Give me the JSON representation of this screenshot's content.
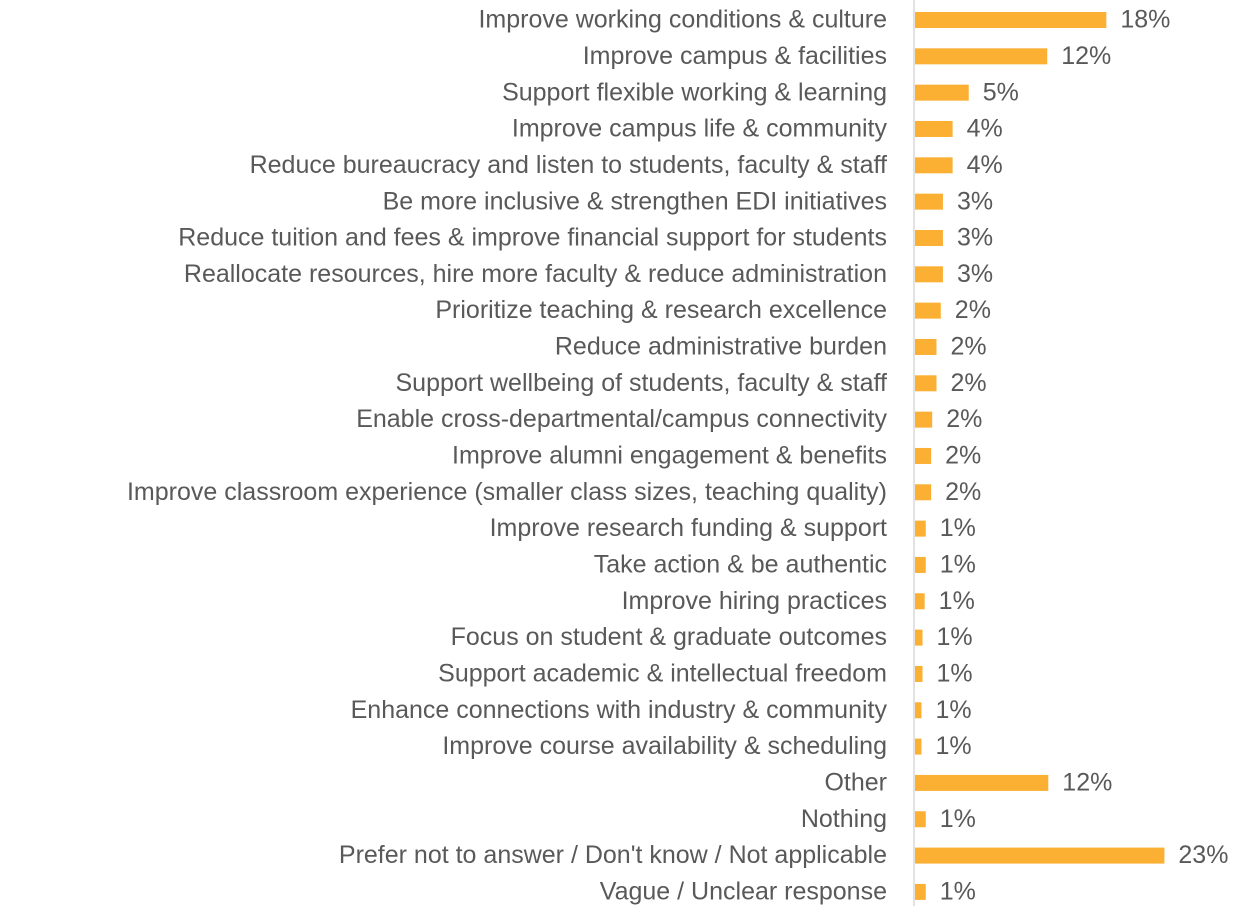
{
  "chart_data": {
    "type": "bar",
    "orientation": "horizontal",
    "color": "#fbb034",
    "categories": [
      "Improve working conditions & culture",
      "Improve campus & facilities",
      "Support flexible working & learning",
      "Improve campus life & community",
      "Reduce bureaucracy and listen to students, faculty & staff",
      "Be more inclusive & strengthen EDI initiatives",
      "Reduce tuition and fees & improve financial support for students",
      "Reallocate resources, hire more faculty & reduce administration",
      "Prioritize teaching & research excellence",
      "Reduce administrative burden",
      "Support wellbeing of students, faculty & staff",
      "Enable cross-departmental/campus connectivity",
      "Improve alumni engagement & benefits",
      "Improve classroom experience (smaller class sizes, teaching quality)",
      "Improve research funding & support",
      "Take action & be authentic",
      "Improve hiring practices",
      "Focus on student & graduate outcomes",
      "Support academic & intellectual freedom",
      "Enhance connections with industry & community",
      "Improve course availability & scheduling",
      "Other",
      "Nothing",
      "Prefer not to answer / Don't know / Not applicable",
      "Vague / Unclear response"
    ],
    "values": [
      17.8,
      12.3,
      5.0,
      3.5,
      3.5,
      2.6,
      2.6,
      2.6,
      2.4,
      2.0,
      2.0,
      1.6,
      1.5,
      1.5,
      1.0,
      1.0,
      0.9,
      0.7,
      0.7,
      0.6,
      0.6,
      12.4,
      1.0,
      23.2,
      1.0
    ],
    "value_labels": [
      "18%",
      "12%",
      "5%",
      "4%",
      "4%",
      "3%",
      "3%",
      "3%",
      "2%",
      "2%",
      "2%",
      "2%",
      "2%",
      "2%",
      "1%",
      "1%",
      "1%",
      "1%",
      "1%",
      "1%",
      "1%",
      "12%",
      "1%",
      "23%",
      "1%"
    ],
    "xlim": [
      0,
      25
    ]
  }
}
